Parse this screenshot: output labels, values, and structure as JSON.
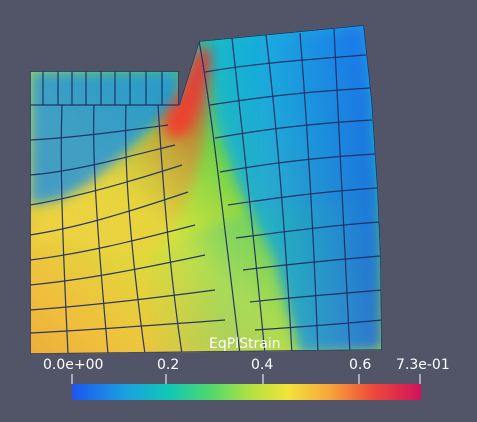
{
  "viewport": {
    "background": "#525468",
    "mesh_color": "#1f2f63"
  },
  "colorbar": {
    "title": "EqPlStrain",
    "tick_labels": [
      "0.0e+00",
      "0.2",
      "0.4",
      "0.6",
      "7.3e-01"
    ],
    "colormap": "turbo-like rainbow (blue → cyan → green → yellow → orange → red → magenta)",
    "colors": {
      "min": "#1d55f0",
      "max": "#d2115c"
    }
  }
}
